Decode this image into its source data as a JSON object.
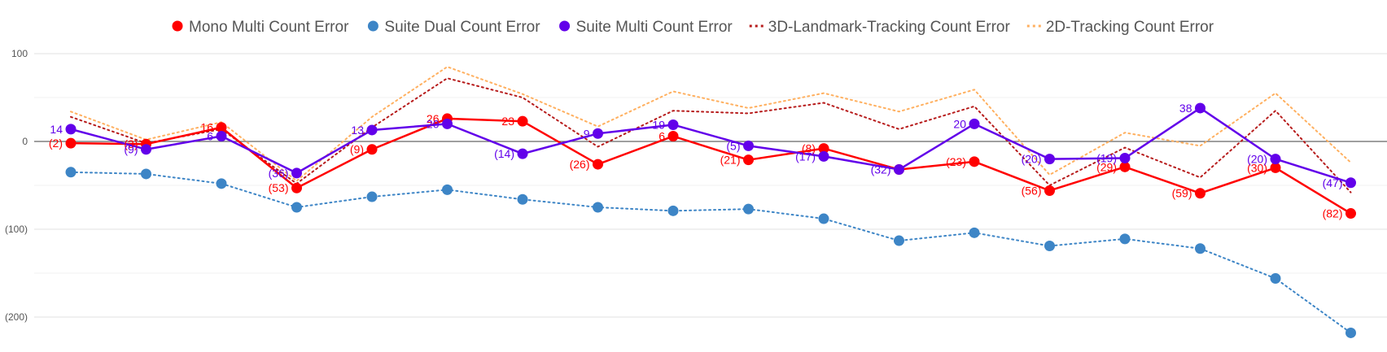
{
  "chart_data": {
    "type": "line",
    "title": "",
    "xlabel": "",
    "ylabel": "",
    "ylim": [
      -220,
      100
    ],
    "y_ticks": [
      100,
      0,
      -100,
      -200
    ],
    "y_tick_labels": [
      "100",
      "0",
      "(100)",
      "(200)"
    ],
    "grid": true,
    "legend_position": "top-center",
    "x": [
      1,
      2,
      3,
      4,
      5,
      6,
      7,
      8,
      9,
      10,
      11,
      12,
      13,
      14,
      15,
      16,
      17,
      18,
      19
    ],
    "series": [
      {
        "name": "Mono Multi Count Error",
        "color": "#ff0000",
        "style": "solid",
        "marker": true,
        "values": [
          -2,
          -3,
          16,
          -53,
          -9,
          26,
          23,
          -26,
          6,
          -21,
          -8,
          -32,
          -23,
          -56,
          -29,
          -59,
          -30,
          -82,
          null
        ],
        "labels": [
          "(2)",
          "(3)",
          "16",
          "(53)",
          "(9)",
          "26",
          "23",
          "(26)",
          "6",
          "(21)",
          "(8)",
          "",
          "(23)",
          "(56)",
          "(29)",
          "(59)",
          "(30)",
          "(82)",
          ""
        ]
      },
      {
        "name": "Suite Dual Count Error",
        "color": "#3d85c6",
        "style": "dotted",
        "marker": true,
        "values": [
          -35,
          -37,
          -48,
          -75,
          -63,
          -55,
          -66,
          -75,
          -79,
          -77,
          -88,
          -113,
          -104,
          -119,
          -111,
          -122,
          -156,
          -218,
          null
        ],
        "labels": []
      },
      {
        "name": "Suite Multi Count Error",
        "color": "#6200ea",
        "style": "solid",
        "marker": true,
        "values": [
          14,
          -9,
          6,
          -36,
          13,
          20,
          -14,
          9,
          19,
          -5,
          -17,
          -32,
          20,
          -20,
          -19,
          38,
          -20,
          -47,
          null
        ],
        "labels": [
          "14",
          "(9)",
          "6",
          "(36)",
          "13",
          "20",
          "(14)",
          "9",
          "19",
          "(5)",
          "(17)",
          "(32)",
          "20",
          "(20)",
          "(19)",
          "38",
          "(20)",
          "(47)",
          ""
        ]
      },
      {
        "name": "3D-Landmark-Tracking Count Error",
        "color": "#b71c1c",
        "style": "dotted",
        "marker": false,
        "values": [
          28,
          -2,
          14,
          -48,
          16,
          72,
          50,
          -6,
          35,
          32,
          44,
          14,
          40,
          -50,
          -7,
          -41,
          35,
          -58,
          null
        ],
        "labels": []
      },
      {
        "name": "2D-Tracking Count Error",
        "color": "#ffb060",
        "style": "dotted",
        "marker": false,
        "values": [
          34,
          2,
          22,
          -45,
          28,
          85,
          54,
          17,
          57,
          38,
          55,
          34,
          59,
          -38,
          10,
          -5,
          55,
          -24,
          null
        ],
        "labels": []
      }
    ]
  }
}
